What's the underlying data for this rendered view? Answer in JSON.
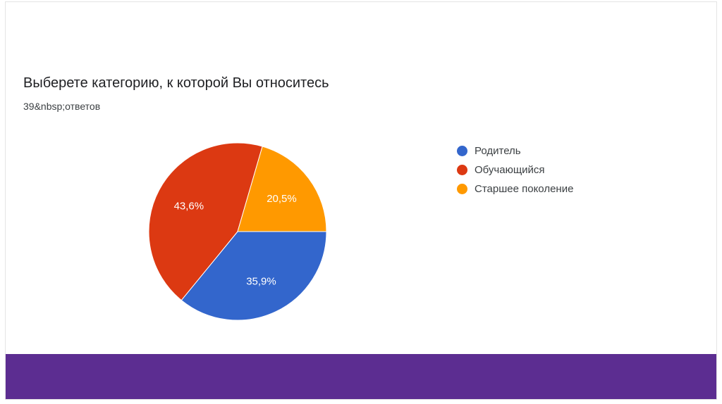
{
  "chart_data": {
    "type": "pie",
    "title": "Выберете категорию, к которой Вы относитесь",
    "subtitle": "39&nbsp;ответов",
    "categories": [
      "Родитель",
      "Обучающийся",
      "Старшее поколение"
    ],
    "values": [
      35.9,
      43.6,
      20.5
    ],
    "labels": [
      "35,9%",
      "43,6%",
      "20,5%"
    ],
    "colors": [
      "#3366cc",
      "#dc3912",
      "#ff9900"
    ],
    "legend_position": "right"
  },
  "footer": {
    "color": "#5c2d91"
  }
}
